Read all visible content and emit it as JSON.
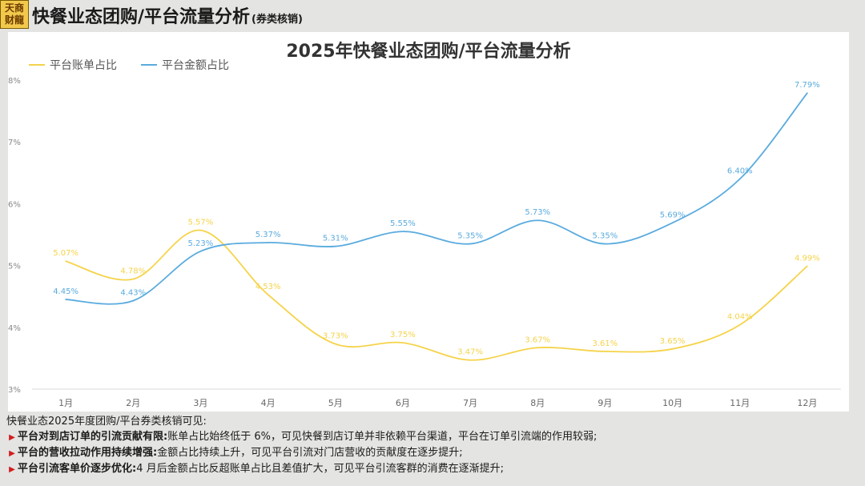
{
  "logo": {
    "line1": "天商",
    "line2": "财龍"
  },
  "header": {
    "title": "快餐业态团购/平台流量分析",
    "subtitle": "(券类核销)"
  },
  "chart_data": {
    "type": "line",
    "title": "2025年快餐业态团购/平台流量分析",
    "categories": [
      "1月",
      "2月",
      "3月",
      "4月",
      "5月",
      "6月",
      "7月",
      "8月",
      "9月",
      "10月",
      "11月",
      "12月"
    ],
    "y_ticks": [
      "3%",
      "4%",
      "5%",
      "6%",
      "7%",
      "8%"
    ],
    "ylim": [
      3,
      8
    ],
    "legend_position": "top-left",
    "grid": false,
    "series": [
      {
        "name": "平台账单占比",
        "color": "#f5d34a",
        "values": [
          5.07,
          4.78,
          5.57,
          4.53,
          3.73,
          3.75,
          3.47,
          3.67,
          3.61,
          3.65,
          4.04,
          4.99
        ],
        "labels": [
          "5.07%",
          "4.78%",
          "5.57%",
          "4.53%",
          "3.73%",
          "3.75%",
          "3.47%",
          "3.67%",
          "3.61%",
          "3.65%",
          "4.04%",
          "4.99%"
        ]
      },
      {
        "name": "平台金额占比",
        "color": "#5aabde",
        "values": [
          4.45,
          4.43,
          5.23,
          5.37,
          5.31,
          5.55,
          5.35,
          5.73,
          5.35,
          5.69,
          6.4,
          7.79
        ],
        "labels": [
          "4.45%",
          "4.43%",
          "5.23%",
          "5.37%",
          "5.31%",
          "5.55%",
          "5.35%",
          "5.73%",
          "5.35%",
          "5.69%",
          "6.40%",
          "7.79%"
        ]
      }
    ]
  },
  "notes": {
    "intro": "快餐业态2025年度团购/平台券类核销可见:",
    "bullet_char": "▶",
    "items": [
      {
        "bold": "平台对到店订单的引流贡献有限:",
        "text": "账单占比始终低于 6%，可见快餐到店订单并非依赖平台渠道，平台在订单引流端的作用较弱;"
      },
      {
        "bold": "平台的营收拉动作用持续增强:",
        "text": "金额占比持续上升，可见平台引流对门店营收的贡献度在逐步提升;"
      },
      {
        "bold": "平台引流客单价逐步优化:",
        "text": "4 月后金额占比反超账单占比且差值扩大，可见平台引流客群的消费在逐渐提升;"
      }
    ]
  }
}
